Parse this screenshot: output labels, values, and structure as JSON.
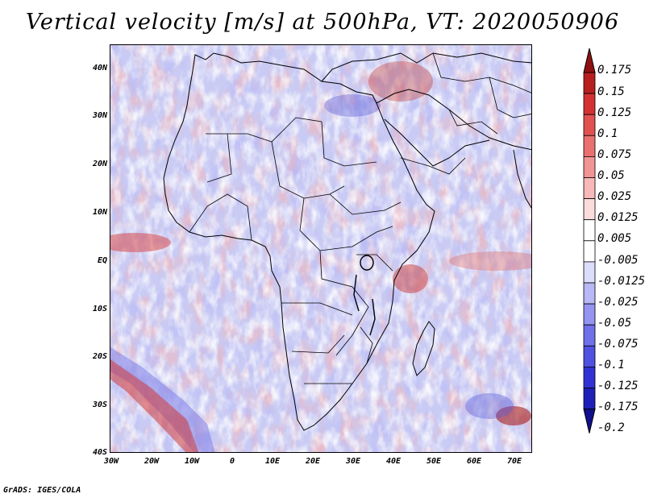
{
  "title": "Vertical velocity [m/s] at 500hPa, VT: 2020050906",
  "footer": "GrADS: IGES/COLA",
  "lat_labels": [
    "40N",
    "30N",
    "20N",
    "10N",
    "EQ",
    "10S",
    "20S",
    "30S",
    "40S"
  ],
  "lon_labels": [
    "30W",
    "20W",
    "10W",
    "0",
    "10E",
    "20E",
    "30E",
    "40E",
    "50E",
    "60E",
    "70E"
  ],
  "colorbar": {
    "labels": [
      "0.175",
      "0.15",
      "0.125",
      "0.1",
      "0.075",
      "0.05",
      "0.025",
      "0.0125",
      "0.005",
      "-0.005",
      "-0.0125",
      "-0.025",
      "-0.05",
      "-0.075",
      "-0.1",
      "-0.125",
      "-0.175",
      "-0.2"
    ],
    "colors": [
      "#8f1010",
      "#b81e1e",
      "#d43232",
      "#e25050",
      "#ea7070",
      "#f19494",
      "#f6b8b8",
      "#fbdcdc",
      "#ffffff",
      "#ffffff",
      "#dcdcfb",
      "#b8b8f6",
      "#9494f1",
      "#7070ea",
      "#5050e2",
      "#3232d4",
      "#1e1eb8",
      "#10108f"
    ]
  }
}
